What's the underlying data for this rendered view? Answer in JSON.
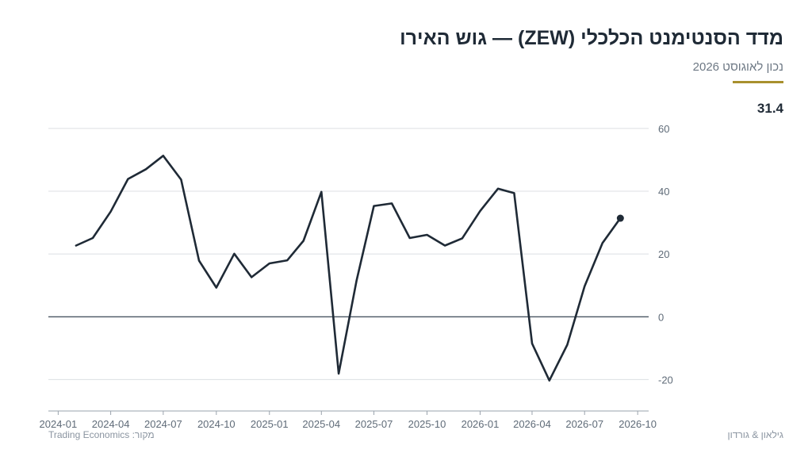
{
  "header": {
    "title": "מדד הסנטימנט הכלכלי (ZEW) — גוש האירו",
    "subtitle": "נכון לאוגוסט 2026",
    "latest_value": "31.4"
  },
  "footer": {
    "source": "מקור: Trading Economics",
    "brand": "גילאון & גורדון"
  },
  "colors": {
    "line": "#1f2a36",
    "accent": "#a8902e",
    "grid": "#dcdfe3",
    "zero_line": "#4a5663"
  },
  "chart_data": {
    "type": "line",
    "title": "מדד הסנטימנט הכלכלי (ZEW) — גוש האירו",
    "subtitle": "נכון לאוגוסט 2026",
    "xlabel": "",
    "ylabel": "",
    "x_ticks": [
      "2024-01",
      "2024-04",
      "2024-07",
      "2024-10",
      "2025-01",
      "2025-04",
      "2025-07",
      "2025-10",
      "2026-01",
      "2026-04",
      "2026-07",
      "2026-10"
    ],
    "y_ticks": [
      60,
      40,
      20,
      0,
      -20
    ],
    "xlim": [
      "2023-12-15",
      "2026-10-20"
    ],
    "ylim": [
      -30,
      63
    ],
    "grid": true,
    "y_axis_position": "right",
    "series": [
      {
        "x": [
          "2024-02",
          "2024-03",
          "2024-04",
          "2024-05",
          "2024-06",
          "2024-07",
          "2024-08",
          "2024-09",
          "2024-10",
          "2024-11",
          "2024-12",
          "2025-01",
          "2025-02",
          "2025-03",
          "2025-04",
          "2025-05",
          "2025-06",
          "2025-07",
          "2025-08",
          "2025-09",
          "2025-10",
          "2025-11",
          "2025-12",
          "2026-01",
          "2026-02",
          "2026-03",
          "2026-04",
          "2026-05",
          "2026-06",
          "2026-07",
          "2026-08",
          "2026-09"
        ],
        "values": [
          22.7,
          25.1,
          33.5,
          43.9,
          47.0,
          51.3,
          43.7,
          17.9,
          9.3,
          20.1,
          12.6,
          17.0,
          18.0,
          24.2,
          39.8,
          -18.1,
          11.6,
          35.3,
          36.1,
          25.1,
          26.1,
          22.7,
          25.0,
          33.7,
          40.8,
          39.4,
          -8.5,
          -20.3,
          -8.9,
          9.7,
          23.5,
          31.4
        ]
      }
    ]
  }
}
